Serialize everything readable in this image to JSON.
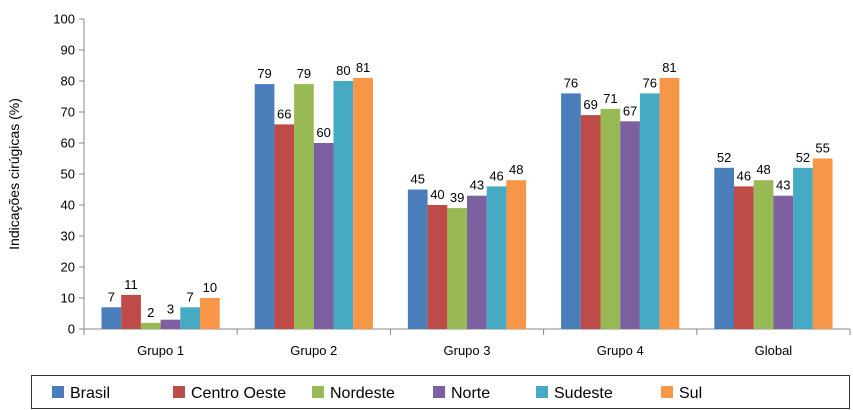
{
  "chart_data": {
    "type": "bar",
    "ylabel": "Indicações cirúgicas (%)",
    "ylim": [
      0,
      100
    ],
    "yticks": [
      0,
      10,
      20,
      30,
      40,
      50,
      60,
      70,
      80,
      90,
      100
    ],
    "categories": [
      "Grupo 1",
      "Grupo 2",
      "Grupo 3",
      "Grupo 4",
      "Global"
    ],
    "grid": false,
    "legend_position": "bottom",
    "series": [
      {
        "name": "Brasil",
        "color": "#4a7ebb",
        "values": [
          7,
          79,
          45,
          76,
          52
        ]
      },
      {
        "name": "Centro Oeste",
        "color": "#be4b48",
        "values": [
          11,
          66,
          40,
          69,
          46
        ]
      },
      {
        "name": "Nordeste",
        "color": "#98b954",
        "values": [
          2,
          79,
          39,
          71,
          48
        ]
      },
      {
        "name": "Norte",
        "color": "#7d60a0",
        "values": [
          3,
          60,
          43,
          67,
          43
        ]
      },
      {
        "name": "Sudeste",
        "color": "#46aac5",
        "values": [
          7,
          80,
          46,
          76,
          52
        ]
      },
      {
        "name": "Sul",
        "color": "#f79646",
        "values": [
          10,
          81,
          48,
          81,
          55
        ]
      }
    ],
    "data_labels": [
      [
        "7",
        "11",
        "2",
        "3",
        "7",
        "10"
      ],
      [
        "79",
        "66",
        "79",
        "60",
        "80",
        "81"
      ],
      [
        "45",
        "40",
        "39",
        "43",
        "46",
        "48"
      ],
      [
        "76",
        "69",
        "71",
        "67",
        "76",
        "81"
      ],
      [
        "52",
        "46",
        "48",
        "43",
        "52",
        "55"
      ]
    ]
  }
}
